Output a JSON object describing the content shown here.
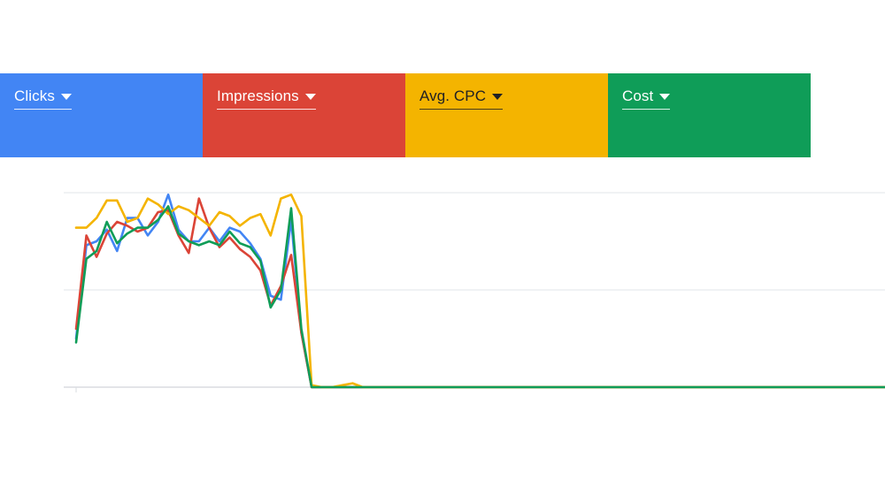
{
  "metrics": [
    {
      "label": "Clicks",
      "color": "#4285f4"
    },
    {
      "label": "Impressions",
      "color": "#db4437"
    },
    {
      "label": "Avg. CPC",
      "color": "#f4b400"
    },
    {
      "label": "Cost",
      "color": "#0f9d58"
    }
  ],
  "chart_data": {
    "type": "line",
    "title": "",
    "xlabel": "",
    "ylabel": "",
    "gridlines": true,
    "ylim": [
      0,
      100
    ],
    "x": [
      1,
      2,
      3,
      4,
      5,
      6,
      7,
      8,
      9,
      10,
      11,
      12,
      13,
      14,
      15,
      16,
      17,
      18,
      19,
      20,
      21,
      22,
      23,
      24,
      25,
      26,
      27,
      28,
      29,
      30,
      31,
      32,
      33,
      34,
      35,
      36,
      37,
      38,
      39,
      40,
      41,
      42,
      43,
      44,
      45,
      46,
      47,
      48,
      49,
      50,
      51,
      52,
      53,
      54,
      55,
      56,
      57,
      58,
      59,
      60,
      61,
      62,
      63,
      64,
      65,
      66,
      67,
      68,
      69,
      70,
      71,
      72,
      73,
      74,
      75,
      76,
      77,
      78,
      79,
      80
    ],
    "series": [
      {
        "color": "#4285f4",
        "values": [
          25,
          73,
          75,
          81,
          70,
          87,
          87,
          78,
          85,
          99,
          81,
          75,
          75,
          82,
          75,
          82,
          80,
          74,
          66,
          47,
          45,
          86,
          28,
          0,
          0,
          0,
          0,
          0,
          0,
          0,
          0,
          0,
          0,
          0,
          0,
          0,
          0,
          0,
          0,
          0,
          0,
          0,
          0,
          0,
          0,
          0,
          0,
          0,
          0,
          0,
          0,
          0,
          0,
          0,
          0,
          0,
          0,
          0,
          0,
          0,
          0,
          0,
          0,
          0,
          0,
          0,
          0,
          0,
          0,
          0,
          0,
          0,
          0,
          0,
          0,
          0,
          0,
          0,
          0,
          0
        ]
      },
      {
        "color": "#db4437",
        "values": [
          30,
          78,
          67,
          79,
          85,
          83,
          80,
          82,
          90,
          91,
          78,
          69,
          97,
          82,
          72,
          77,
          71,
          67,
          60,
          42,
          52,
          68,
          28,
          0,
          0,
          0,
          0,
          0,
          0,
          0,
          0,
          0,
          0,
          0,
          0,
          0,
          0,
          0,
          0,
          0,
          0,
          0,
          0,
          0,
          0,
          0,
          0,
          0,
          0,
          0,
          0,
          0,
          0,
          0,
          0,
          0,
          0,
          0,
          0,
          0,
          0,
          0,
          0,
          0,
          0,
          0,
          0,
          0,
          0,
          0,
          0,
          0,
          0,
          0,
          0,
          0,
          0,
          0,
          0,
          0
        ]
      },
      {
        "color": "#f4b400",
        "values": [
          82,
          82,
          87,
          96,
          96,
          85,
          87,
          97,
          94,
          89,
          93,
          91,
          87,
          83,
          90,
          88,
          83,
          87,
          89,
          78,
          97,
          99,
          88,
          1,
          0,
          0,
          1,
          2,
          0,
          0,
          0,
          0,
          0,
          0,
          0,
          0,
          0,
          0,
          0,
          0,
          0,
          0,
          0,
          0,
          0,
          0,
          0,
          0,
          0,
          0,
          0,
          0,
          0,
          0,
          0,
          0,
          0,
          0,
          0,
          0,
          0,
          0,
          0,
          0,
          0,
          0,
          0,
          0,
          0,
          0,
          0,
          0,
          0,
          0,
          0,
          0,
          0,
          0,
          0,
          0
        ]
      },
      {
        "color": "#0f9d58",
        "values": [
          23,
          66,
          70,
          85,
          74,
          79,
          82,
          82,
          86,
          93,
          79,
          75,
          73,
          75,
          73,
          80,
          74,
          72,
          65,
          41,
          50,
          92,
          30,
          0,
          0,
          0,
          0,
          0,
          0,
          0,
          0,
          0,
          0,
          0,
          0,
          0,
          0,
          0,
          0,
          0,
          0,
          0,
          0,
          0,
          0,
          0,
          0,
          0,
          0,
          0,
          0,
          0,
          0,
          0,
          0,
          0,
          0,
          0,
          0,
          0,
          0,
          0,
          0,
          0,
          0,
          0,
          0,
          0,
          0,
          0,
          0,
          0,
          0,
          0,
          0,
          0,
          0,
          0,
          0,
          0
        ]
      }
    ]
  }
}
